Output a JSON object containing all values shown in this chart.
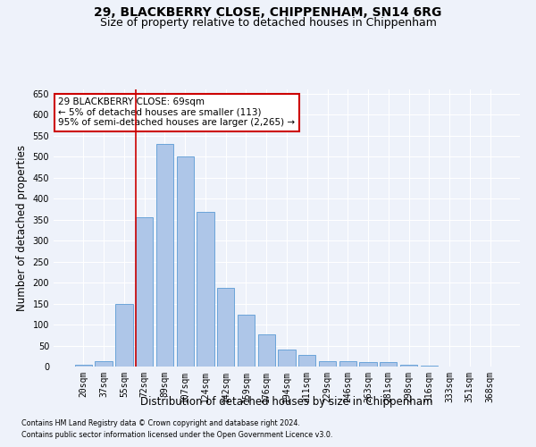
{
  "title1": "29, BLACKBERRY CLOSE, CHIPPENHAM, SN14 6RG",
  "title2": "Size of property relative to detached houses in Chippenham",
  "xlabel": "Distribution of detached houses by size in Chippenham",
  "ylabel": "Number of detached properties",
  "categories": [
    "20sqm",
    "37sqm",
    "55sqm",
    "72sqm",
    "89sqm",
    "107sqm",
    "124sqm",
    "142sqm",
    "159sqm",
    "176sqm",
    "194sqm",
    "211sqm",
    "229sqm",
    "246sqm",
    "263sqm",
    "281sqm",
    "298sqm",
    "316sqm",
    "333sqm",
    "351sqm",
    "368sqm"
  ],
  "values": [
    5,
    13,
    150,
    355,
    530,
    500,
    368,
    188,
    123,
    77,
    40,
    27,
    13,
    13,
    10,
    10,
    5,
    2,
    1,
    1,
    1
  ],
  "bar_color": "#aec6e8",
  "bar_edgecolor": "#5b9bd5",
  "redline_index": 3,
  "annotation_line1": "29 BLACKBERRY CLOSE: 69sqm",
  "annotation_line2": "← 5% of detached houses are smaller (113)",
  "annotation_line3": "95% of semi-detached houses are larger (2,265) →",
  "annotation_box_color": "#ffffff",
  "annotation_box_edgecolor": "#cc0000",
  "redline_color": "#cc0000",
  "ylim": [
    0,
    660
  ],
  "yticks": [
    0,
    50,
    100,
    150,
    200,
    250,
    300,
    350,
    400,
    450,
    500,
    550,
    600,
    650
  ],
  "footnote1": "Contains HM Land Registry data © Crown copyright and database right 2024.",
  "footnote2": "Contains public sector information licensed under the Open Government Licence v3.0.",
  "background_color": "#eef2fa",
  "grid_color": "#ffffff",
  "title1_fontsize": 10,
  "title2_fontsize": 9,
  "axis_label_fontsize": 8.5,
  "tick_fontsize": 7,
  "annotation_fontsize": 7.5,
  "footnote_fontsize": 5.8
}
